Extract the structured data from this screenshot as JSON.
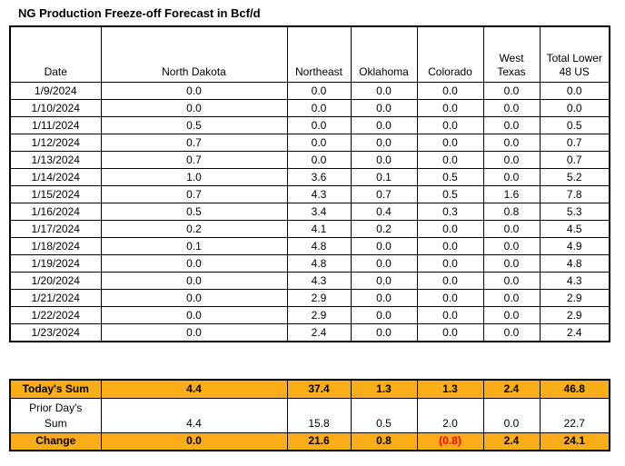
{
  "title": "NG Production Freeze-off Forecast in Bcf/d",
  "colors": {
    "highlight": "#FBAD18",
    "negative": "#FF0000",
    "border": "#000000",
    "background": "#FFFFFF"
  },
  "table": {
    "columns": [
      "Date",
      "North Dakota",
      "Northeast",
      "Oklahoma",
      "Colorado",
      "West Texas",
      "Total Lower 48 US"
    ],
    "rows": [
      {
        "date": "1/9/2024",
        "values": [
          "0.0",
          "0.0",
          "0.0",
          "0.0",
          "0.0",
          "0.0"
        ]
      },
      {
        "date": "1/10/2024",
        "values": [
          "0.0",
          "0.0",
          "0.0",
          "0.0",
          "0.0",
          "0.0"
        ]
      },
      {
        "date": "1/11/2024",
        "values": [
          "0.5",
          "0.0",
          "0.0",
          "0.0",
          "0.0",
          "0.5"
        ]
      },
      {
        "date": "1/12/2024",
        "values": [
          "0.7",
          "0.0",
          "0.0",
          "0.0",
          "0.0",
          "0.7"
        ]
      },
      {
        "date": "1/13/2024",
        "values": [
          "0.7",
          "0.0",
          "0.0",
          "0.0",
          "0.0",
          "0.7"
        ]
      },
      {
        "date": "1/14/2024",
        "values": [
          "1.0",
          "3.6",
          "0.1",
          "0.5",
          "0.0",
          "5.2"
        ]
      },
      {
        "date": "1/15/2024",
        "values": [
          "0.7",
          "4.3",
          "0.7",
          "0.5",
          "1.6",
          "7.8"
        ]
      },
      {
        "date": "1/16/2024",
        "values": [
          "0.5",
          "3.4",
          "0.4",
          "0.3",
          "0.8",
          "5.3"
        ]
      },
      {
        "date": "1/17/2024",
        "values": [
          "0.2",
          "4.1",
          "0.2",
          "0.0",
          "0.0",
          "4.5"
        ]
      },
      {
        "date": "1/18/2024",
        "values": [
          "0.1",
          "4.8",
          "0.0",
          "0.0",
          "0.0",
          "4.9"
        ]
      },
      {
        "date": "1/19/2024",
        "values": [
          "0.0",
          "4.8",
          "0.0",
          "0.0",
          "0.0",
          "4.8"
        ]
      },
      {
        "date": "1/20/2024",
        "values": [
          "0.0",
          "4.3",
          "0.0",
          "0.0",
          "0.0",
          "4.3"
        ]
      },
      {
        "date": "1/21/2024",
        "values": [
          "0.0",
          "2.9",
          "0.0",
          "0.0",
          "0.0",
          "2.9"
        ]
      },
      {
        "date": "1/22/2024",
        "values": [
          "0.0",
          "2.9",
          "0.0",
          "0.0",
          "0.0",
          "2.9"
        ]
      },
      {
        "date": "1/23/2024",
        "values": [
          "0.0",
          "2.4",
          "0.0",
          "0.0",
          "0.0",
          "2.4"
        ]
      }
    ]
  },
  "summary": {
    "rows": [
      {
        "label": "Today's Sum",
        "highlight": true,
        "values": [
          "4.4",
          "37.4",
          "1.3",
          "1.3",
          "2.4",
          "46.8"
        ]
      },
      {
        "label": "Prior Day's Sum",
        "highlight": false,
        "values": [
          "4.4",
          "15.8",
          "0.5",
          "2.0",
          "0.0",
          "22.7"
        ]
      },
      {
        "label": "Change",
        "highlight": true,
        "values": [
          "0.0",
          "21.6",
          "0.8",
          "(0.8)",
          "2.4",
          "24.1"
        ]
      }
    ]
  }
}
